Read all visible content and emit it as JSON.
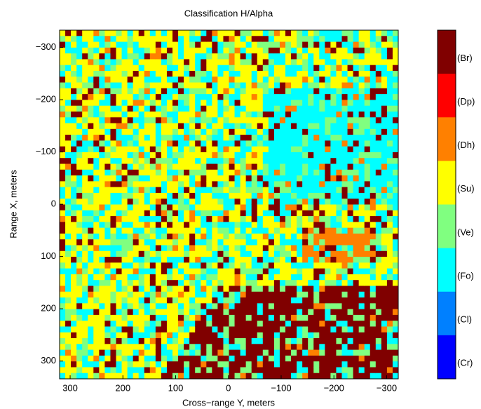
{
  "chart_data": {
    "type": "classmap",
    "title": "Classification H/Alpha",
    "xlabel": "Cross−range Y, meters",
    "ylabel": "Range X, meters",
    "xlim": [
      320,
      -322
    ],
    "ylim": [
      -333,
      334
    ],
    "xticks": [
      300,
      200,
      100,
      0,
      {
        "value": -100,
        "label": "−100"
      },
      {
        "value": -200,
        "label": "−200"
      },
      {
        "value": -300,
        "label": "−300"
      }
    ],
    "yticks": [
      {
        "value": -300,
        "label": "−300"
      },
      {
        "value": -200,
        "label": "−200"
      },
      {
        "value": -100,
        "label": "−100"
      },
      0,
      100,
      200,
      300
    ],
    "colorbar": {
      "classes": [
        "(Br)",
        "(Dp)",
        "(Dh)",
        "(Su)",
        "(Ve)",
        "(Fo)",
        "(Cl)",
        "(Cr)"
      ],
      "colors": [
        "#800000",
        "#ff0000",
        "#ff8000",
        "#ffff00",
        "#80ff80",
        "#00ffff",
        "#0080ff",
        "#0000ff"
      ]
    }
  }
}
